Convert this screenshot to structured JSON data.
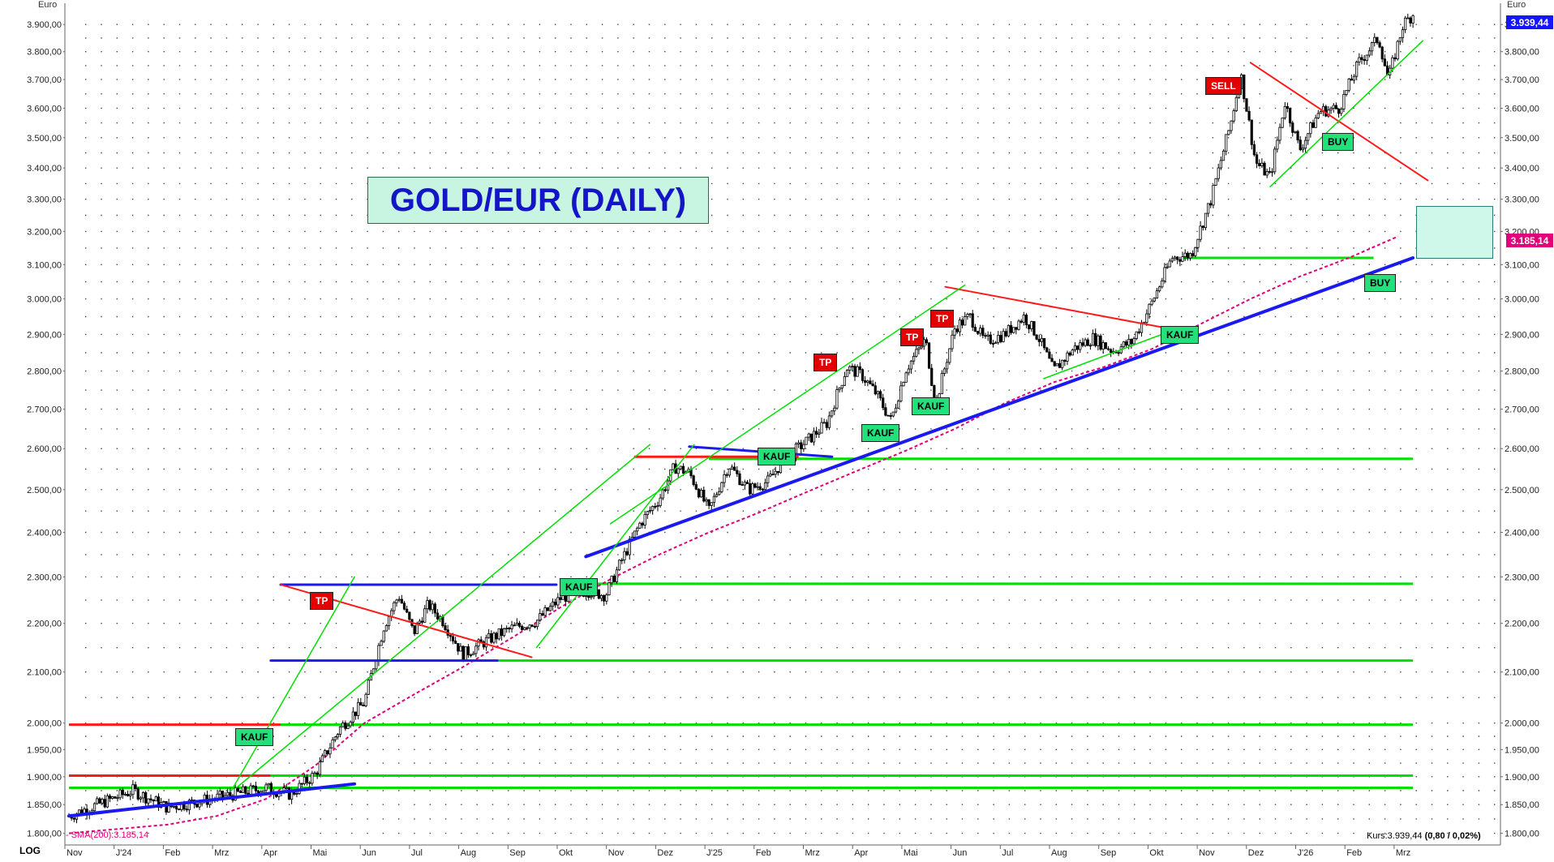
{
  "chart_data": {
    "type": "candlestick",
    "title": "GOLD/EUR (DAILY)",
    "ylabel": "Euro",
    "yscale": "log",
    "ylim": [
      1780,
      3980
    ],
    "y_ticks": [
      "3.900,00",
      "3.800,00",
      "3.700,00",
      "3.600,00",
      "3.500,00",
      "3.400,00",
      "3.300,00",
      "3.200,00",
      "3.100,00",
      "3.000,00",
      "2.900,00",
      "2.800,00",
      "2.700,00",
      "2.600,00",
      "2.500,00",
      "2.400,00",
      "2.300,00",
      "2.200,00",
      "2.100,00",
      "2.000,00",
      "1.950,00",
      "1.900,00",
      "1.850,00",
      "1.800,00"
    ],
    "y_tick_values": [
      3900,
      3800,
      3700,
      3600,
      3500,
      3400,
      3300,
      3200,
      3100,
      3000,
      2900,
      2800,
      2700,
      2600,
      2500,
      2400,
      2300,
      2200,
      2100,
      2000,
      1950,
      1900,
      1850,
      1800
    ],
    "x_ticks": [
      "Nov",
      "J'24",
      "Feb",
      "Mrz",
      "Apr",
      "Mai",
      "Jun",
      "Jul",
      "Aug",
      "Sep",
      "Okt",
      "Nov",
      "Dez",
      "J'25",
      "Feb",
      "Mrz",
      "Apr",
      "Mai",
      "Jun",
      "Jul",
      "Aug",
      "Sep",
      "Okt",
      "Nov",
      "Dez",
      "J'26",
      "Feb",
      "Mrz"
    ],
    "price_path": [
      [
        0,
        1830
      ],
      [
        1.3,
        1875
      ],
      [
        2,
        1845
      ],
      [
        3,
        1862
      ],
      [
        4,
        1880
      ],
      [
        4.5,
        1868
      ],
      [
        5,
        1905
      ],
      [
        5.5,
        1990
      ],
      [
        6,
        2040
      ],
      [
        6.4,
        2195
      ],
      [
        6.7,
        2260
      ],
      [
        7,
        2180
      ],
      [
        7.3,
        2240
      ],
      [
        7.6,
        2205
      ],
      [
        8,
        2135
      ],
      [
        8.5,
        2165
      ],
      [
        9,
        2190
      ],
      [
        9.5,
        2205
      ],
      [
        10,
        2255
      ],
      [
        10.5,
        2270
      ],
      [
        10.9,
        2260
      ],
      [
        11.2,
        2330
      ],
      [
        11.6,
        2420
      ],
      [
        12,
        2480
      ],
      [
        12.3,
        2555
      ],
      [
        12.6,
        2540
      ],
      [
        13,
        2450
      ],
      [
        13.4,
        2560
      ],
      [
        13.8,
        2500
      ],
      [
        14.2,
        2520
      ],
      [
        14.5,
        2570
      ],
      [
        15,
        2620
      ],
      [
        15.4,
        2665
      ],
      [
        15.8,
        2810
      ],
      [
        16.1,
        2790
      ],
      [
        16.4,
        2740
      ],
      [
        16.7,
        2670
      ],
      [
        17,
        2805
      ],
      [
        17.4,
        2885
      ],
      [
        17.6,
        2710
      ],
      [
        18,
        2920
      ],
      [
        18.3,
        2950
      ],
      [
        18.6,
        2880
      ],
      [
        19,
        2900
      ],
      [
        19.4,
        2950
      ],
      [
        19.7,
        2890
      ],
      [
        20,
        2800
      ],
      [
        20.4,
        2860
      ],
      [
        20.8,
        2890
      ],
      [
        21.2,
        2855
      ],
      [
        21.6,
        2880
      ],
      [
        22,
        2990
      ],
      [
        22.4,
        3120
      ],
      [
        22.8,
        3130
      ],
      [
        23.2,
        3300
      ],
      [
        23.6,
        3550
      ],
      [
        23.8,
        3720
      ],
      [
        24.1,
        3420
      ],
      [
        24.4,
        3370
      ],
      [
        24.7,
        3620
      ],
      [
        25,
        3460
      ],
      [
        25.4,
        3590
      ],
      [
        25.8,
        3600
      ],
      [
        26.2,
        3760
      ],
      [
        26.6,
        3850
      ],
      [
        26.8,
        3700
      ],
      [
        27.1,
        3900
      ],
      [
        27.3,
        3939
      ]
    ],
    "sma200": [
      [
        0,
        1800
      ],
      [
        2,
        1815
      ],
      [
        3,
        1830
      ],
      [
        4,
        1860
      ],
      [
        5,
        1920
      ],
      [
        6,
        2000
      ],
      [
        7,
        2055
      ],
      [
        8,
        2110
      ],
      [
        9,
        2170
      ],
      [
        10,
        2235
      ],
      [
        11,
        2295
      ],
      [
        12,
        2350
      ],
      [
        13,
        2400
      ],
      [
        14,
        2445
      ],
      [
        15,
        2495
      ],
      [
        16,
        2545
      ],
      [
        17,
        2595
      ],
      [
        18,
        2650
      ],
      [
        19,
        2715
      ],
      [
        20,
        2770
      ],
      [
        21,
        2810
      ],
      [
        22,
        2860
      ],
      [
        23,
        2930
      ],
      [
        24,
        3000
      ],
      [
        25,
        3065
      ],
      [
        26,
        3120
      ],
      [
        27,
        3185
      ]
    ],
    "horizontal_lines": [
      {
        "color": "#ff1a1a",
        "y": 1997,
        "x": [
          0,
          4.3
        ]
      },
      {
        "color": "#ff1a1a",
        "y": 1902,
        "x": [
          0,
          4.1
        ]
      },
      {
        "color": "#00e000",
        "y": 2575,
        "x": [
          13,
          27.3
        ]
      },
      {
        "color": "#00e000",
        "y": 2285,
        "x": [
          10,
          27.3
        ]
      },
      {
        "color": "#00e000",
        "y": 2123,
        "x": [
          8.7,
          27.3
        ]
      },
      {
        "color": "#00e000",
        "y": 1997,
        "x": [
          4.3,
          27.3
        ]
      },
      {
        "color": "#00e000",
        "y": 1902,
        "x": [
          4.1,
          27.3
        ]
      },
      {
        "color": "#00e000",
        "y": 1880,
        "x": [
          0,
          27.3
        ]
      },
      {
        "color": "#00e000",
        "y": 3120,
        "x": [
          22.6,
          26.5
        ]
      }
    ],
    "trendlines": [
      {
        "color": "#1a1aee",
        "pts": [
          [
            0,
            1830
          ],
          [
            5.8,
            1887
          ]
        ],
        "w": 4
      },
      {
        "color": "#1a1aee",
        "pts": [
          [
            4.1,
            2123
          ],
          [
            8.7,
            2123
          ]
        ],
        "w": 3
      },
      {
        "color": "#1a1aee",
        "pts": [
          [
            4.3,
            2283
          ],
          [
            9.9,
            2283
          ]
        ],
        "w": 3
      },
      {
        "color": "#1a1aee",
        "pts": [
          [
            10.5,
            2345
          ],
          [
            27.3,
            3120
          ]
        ],
        "w": 4
      },
      {
        "color": "#1a1aee",
        "pts": [
          [
            12.6,
            2605
          ],
          [
            15.5,
            2580
          ]
        ],
        "w": 3
      },
      {
        "color": "#ff1a1a",
        "pts": [
          [
            11.5,
            2580
          ],
          [
            14.8,
            2580
          ]
        ],
        "w": 3
      },
      {
        "color": "#ff1a1a",
        "pts": [
          [
            4.3,
            2283
          ],
          [
            9.4,
            2130
          ]
        ],
        "w": 2
      },
      {
        "color": "#ff1a1a",
        "pts": [
          [
            17.8,
            3035
          ],
          [
            22.2,
            2920
          ]
        ],
        "w": 2
      },
      {
        "color": "#ff1a1a",
        "pts": [
          [
            24.0,
            3760
          ],
          [
            27.6,
            3360
          ]
        ],
        "w": 2
      },
      {
        "color": "#00e000",
        "pts": [
          [
            3.3,
            1875
          ],
          [
            5.8,
            2300
          ]
        ],
        "w": 1.5
      },
      {
        "color": "#00e000",
        "pts": [
          [
            3.4,
            1880
          ],
          [
            11.8,
            2610
          ]
        ],
        "w": 1.5
      },
      {
        "color": "#00e000",
        "pts": [
          [
            9.5,
            2150
          ],
          [
            12.7,
            2610
          ]
        ],
        "w": 1.5
      },
      {
        "color": "#00e000",
        "pts": [
          [
            11.0,
            2420
          ],
          [
            18.2,
            3040
          ]
        ],
        "w": 1.5
      },
      {
        "color": "#00e000",
        "pts": [
          [
            19.8,
            2780
          ],
          [
            22.2,
            2900
          ]
        ],
        "w": 1.5
      },
      {
        "color": "#00e000",
        "pts": [
          [
            24.4,
            3340
          ],
          [
            27.5,
            3840
          ]
        ],
        "w": 1.5
      }
    ]
  },
  "labels": {
    "unit_left": "Euro",
    "unit_right": "Euro",
    "log_label": "LOG",
    "sma_legend": "- SMA(200):3.185,14",
    "kurs_label": "Kurs:3.939,44",
    "kurs_change": "(0,80 / 0,02%)",
    "last_price": "3.939,44",
    "sma_price": "3.185,14"
  },
  "signals": [
    {
      "text": "KAUF",
      "kind": "buy"
    },
    {
      "text": "KAUF",
      "kind": "buy"
    },
    {
      "text": "KAUF",
      "kind": "buy"
    },
    {
      "text": "KAUF",
      "kind": "buy"
    },
    {
      "text": "KAUF",
      "kind": "buy"
    },
    {
      "text": "KAUF",
      "kind": "buy"
    },
    {
      "text": "TP",
      "kind": "sell"
    },
    {
      "text": "TP",
      "kind": "sell"
    },
    {
      "text": "TP",
      "kind": "sell"
    },
    {
      "text": "TP",
      "kind": "sell"
    },
    {
      "text": "SELL",
      "kind": "sell"
    },
    {
      "text": "BUY",
      "kind": "buy"
    },
    {
      "text": "BUY",
      "kind": "buy"
    }
  ]
}
